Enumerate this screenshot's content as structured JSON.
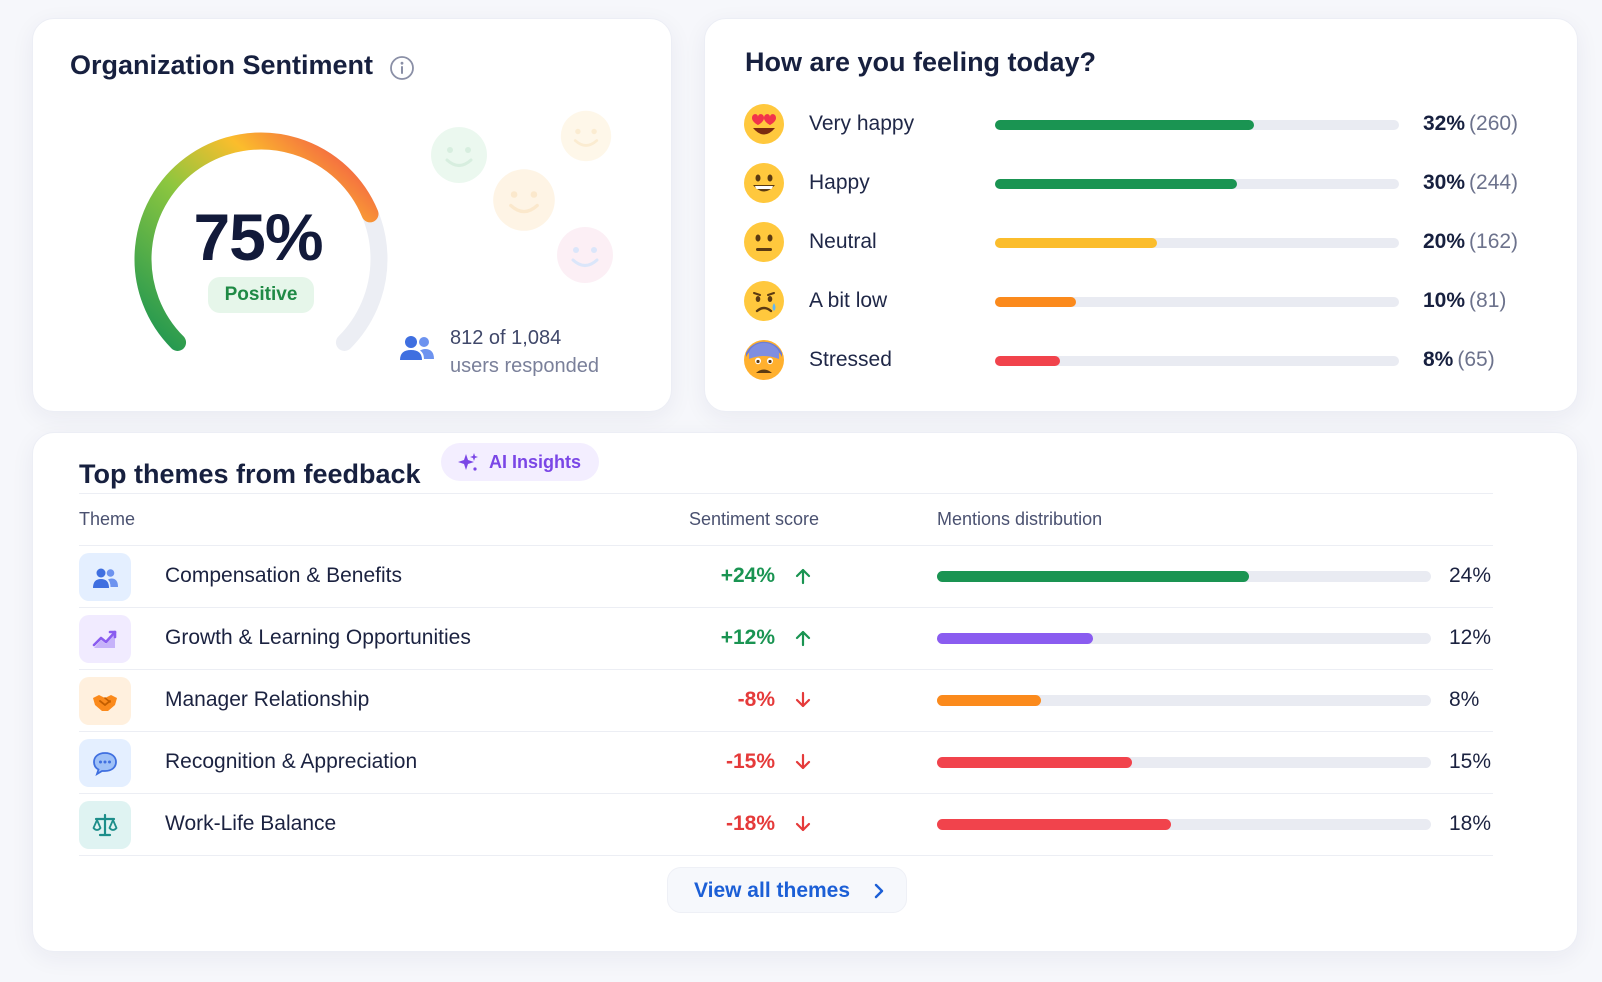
{
  "sentiment": {
    "title": "Organization Sentiment",
    "score": "75%",
    "score_value": 75,
    "badge": "Positive",
    "responded_count": "812 of 1,084",
    "responded_label": "users responded"
  },
  "feeling": {
    "title": "How are you feeling today?",
    "moods": [
      {
        "label": "Very happy",
        "pct": "32%",
        "count": "(260)",
        "value": 32,
        "color": "#1a9452",
        "icon": "heart-eyes-emoji-icon"
      },
      {
        "label": "Happy",
        "pct": "30%",
        "count": "(244)",
        "value": 30,
        "color": "#1a9452",
        "icon": "grinning-emoji-icon"
      },
      {
        "label": "Neutral",
        "pct": "20%",
        "count": "(162)",
        "value": 20,
        "color": "#fbbd2c",
        "icon": "neutral-emoji-icon"
      },
      {
        "label": "A bit low",
        "pct": "10%",
        "count": "(81)",
        "value": 10,
        "color": "#fb8a1c",
        "icon": "sad-emoji-icon"
      },
      {
        "label": "Stressed",
        "pct": "8%",
        "count": "(65)",
        "value": 8,
        "color": "#f1434c",
        "icon": "stressed-emoji-icon"
      }
    ]
  },
  "themes": {
    "title": "Top themes from feedback",
    "ai_label": "AI Insights",
    "columns": {
      "theme": "Theme",
      "score": "Sentiment score",
      "mentions": "Mentions distribution"
    },
    "rows": [
      {
        "name": "Compensation & Benefits",
        "score": "+24%",
        "trend": "up",
        "pct": "24%",
        "value": 24,
        "color": "#1a9452",
        "icon": "people-icon"
      },
      {
        "name": "Growth & Learning Opportunities",
        "score": "+12%",
        "trend": "up",
        "pct": "12%",
        "value": 12,
        "color": "#8a5cf0",
        "icon": "growth-chart-icon"
      },
      {
        "name": "Manager Relationship",
        "score": "-8%",
        "trend": "down",
        "pct": "8%",
        "value": 8,
        "color": "#fb8a1c",
        "icon": "handshake-icon"
      },
      {
        "name": "Recognition & Appreciation",
        "score": "-15%",
        "trend": "down",
        "pct": "15%",
        "value": 15,
        "color": "#f1434c",
        "icon": "chat-bubble-icon"
      },
      {
        "name": "Work-Life Balance",
        "score": "-18%",
        "trend": "down",
        "pct": "18%",
        "value": 18,
        "color": "#f1434c",
        "icon": "balance-scale-icon"
      }
    ],
    "view_all": "View all themes"
  },
  "colors": {
    "positive": "#1a9452",
    "negative": "#e53a3a",
    "link": "#1c5fd6",
    "ai_purple": "#7a46e6"
  }
}
